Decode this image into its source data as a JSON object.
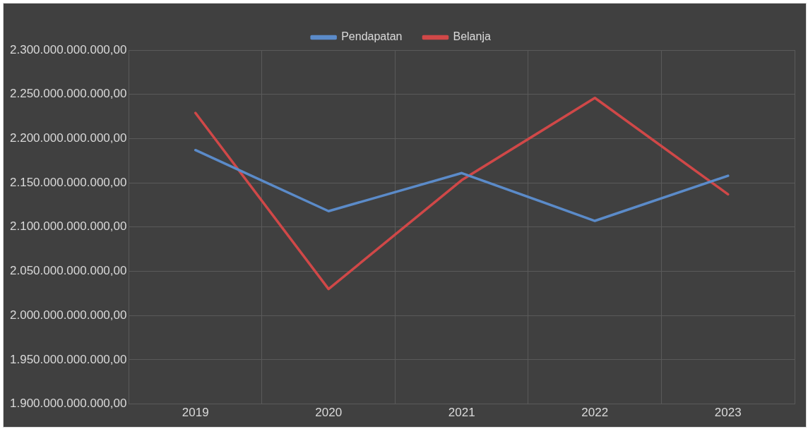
{
  "chart_data": {
    "type": "line",
    "categories": [
      "2019",
      "2020",
      "2021",
      "2022",
      "2023"
    ],
    "series": [
      {
        "name": "Pendapatan",
        "color": "#5b8bc9",
        "values": [
          2187000000000,
          2118000000000,
          2161000000000,
          2107000000000,
          2158000000000
        ]
      },
      {
        "name": "Belanja",
        "color": "#d04848",
        "values": [
          2229000000000,
          2030000000000,
          2153000000000,
          2246000000000,
          2137000000000
        ]
      }
    ],
    "ylim": [
      1900000000000,
      2300000000000
    ],
    "yticks": [
      {
        "value": 1900000000000,
        "label": "1.900.000.000.000,00"
      },
      {
        "value": 1950000000000,
        "label": "1.950.000.000.000,00"
      },
      {
        "value": 2000000000000,
        "label": "2.000.000.000.000,00"
      },
      {
        "value": 2050000000000,
        "label": "2.050.000.000.000,00"
      },
      {
        "value": 2100000000000,
        "label": "2.100.000.000.000,00"
      },
      {
        "value": 2150000000000,
        "label": "2.150.000.000.000,00"
      },
      {
        "value": 2200000000000,
        "label": "2.200.000.000.000,00"
      },
      {
        "value": 2250000000000,
        "label": "2.250.000.000.000,00"
      },
      {
        "value": 2300000000000,
        "label": "2.300.000.000.000,00"
      }
    ],
    "grid": true,
    "legend": "top",
    "marker": "none",
    "line_style": "solid"
  }
}
